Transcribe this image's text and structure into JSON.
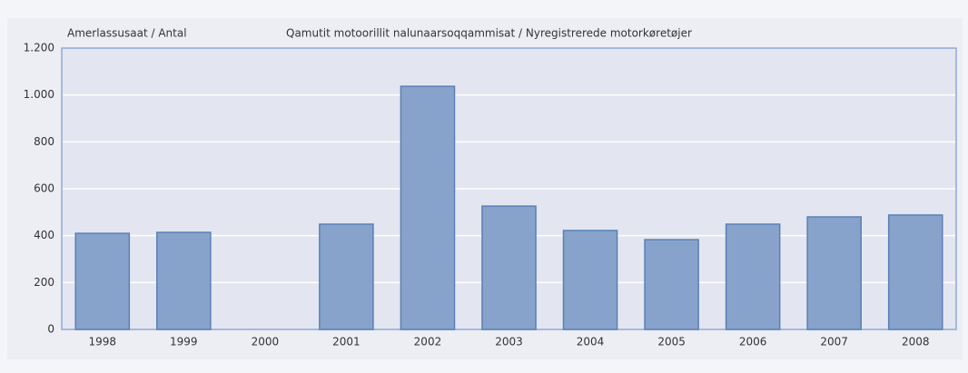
{
  "chart_data": {
    "type": "bar",
    "title": "Qamutit motoorillit nalunaarsoqqammisat / Nyregistrerede motorkøretøjer",
    "y_label": "Amerlassusaat / Antal",
    "categories": [
      "1998",
      "1999",
      "2000",
      "2001",
      "2002",
      "2003",
      "2004",
      "2005",
      "2006",
      "2007",
      "2008"
    ],
    "values": [
      410,
      414,
      null,
      449,
      1037,
      526,
      422,
      383,
      449,
      480,
      488
    ],
    "color": "#87a3cb",
    "ylim": [
      0,
      1200
    ],
    "yticks": [
      0,
      200,
      400,
      600,
      800,
      {
        "value": 1000,
        "label": "1.000"
      },
      {
        "value": 1200,
        "label": "1.200"
      }
    ],
    "grid": true
  }
}
